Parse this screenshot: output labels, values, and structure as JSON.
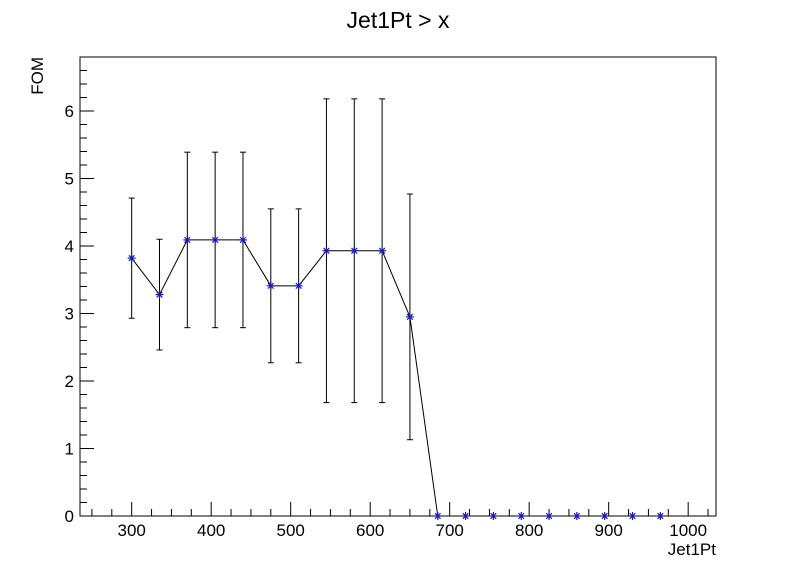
{
  "chart_data": {
    "type": "scatter",
    "title": "Jet1Pt > x",
    "xlabel": "Jet1Pt",
    "ylabel": "FOM",
    "xlim": [
      235,
      1035
    ],
    "ylim": [
      0,
      6.8
    ],
    "x_ticks": [
      300,
      400,
      500,
      600,
      700,
      800,
      900,
      1000
    ],
    "y_ticks": [
      0,
      1,
      2,
      3,
      4,
      5,
      6
    ],
    "grid": false,
    "series": [
      {
        "line_color": "#000000",
        "marker_color": "#1a1ab4",
        "marker": "star",
        "points": [
          {
            "x": 300,
            "y": 3.82,
            "err": 0.89
          },
          {
            "x": 335,
            "y": 3.28,
            "err": 0.82
          },
          {
            "x": 370,
            "y": 4.09,
            "err": 1.3
          },
          {
            "x": 405,
            "y": 4.09,
            "err": 1.3
          },
          {
            "x": 440,
            "y": 4.09,
            "err": 1.3
          },
          {
            "x": 475,
            "y": 3.41,
            "err": 1.14
          },
          {
            "x": 510,
            "y": 3.41,
            "err": 1.14
          },
          {
            "x": 545,
            "y": 3.93,
            "err": 2.25
          },
          {
            "x": 580,
            "y": 3.93,
            "err": 2.25
          },
          {
            "x": 615,
            "y": 3.93,
            "err": 2.25
          },
          {
            "x": 650,
            "y": 2.95,
            "err": 1.82
          },
          {
            "x": 685,
            "y": 0,
            "err": 0
          },
          {
            "x": 720,
            "y": 0,
            "err": 0
          },
          {
            "x": 755,
            "y": 0,
            "err": 0
          },
          {
            "x": 790,
            "y": 0,
            "err": 0
          },
          {
            "x": 825,
            "y": 0,
            "err": 0
          },
          {
            "x": 860,
            "y": 0,
            "err": 0
          },
          {
            "x": 895,
            "y": 0,
            "err": 0
          },
          {
            "x": 930,
            "y": 0,
            "err": 0
          },
          {
            "x": 965,
            "y": 0,
            "err": 0
          }
        ]
      }
    ]
  }
}
